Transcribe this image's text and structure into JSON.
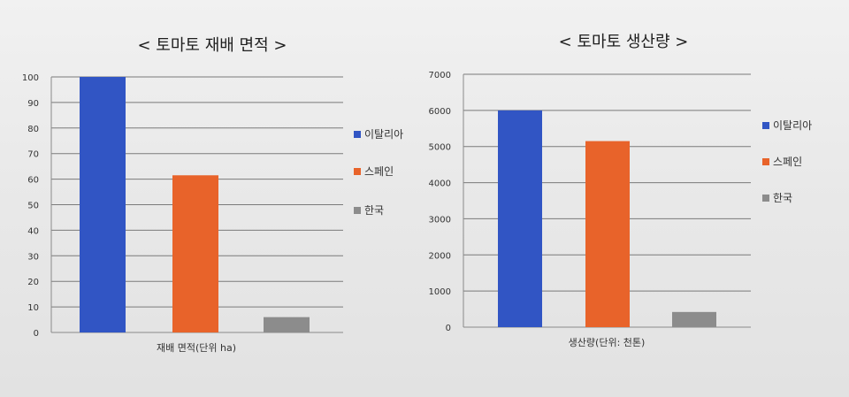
{
  "chart_data": [
    {
      "type": "bar",
      "title": "< 토마토 재배 면적 >",
      "xlabel": "재배 면적(단위 ha)",
      "ylabel": "",
      "ylim": [
        0,
        100
      ],
      "yticks": [
        0,
        10,
        20,
        30,
        40,
        50,
        60,
        70,
        80,
        90,
        100
      ],
      "grid": true,
      "legend_position": "right",
      "series": [
        {
          "name": "이탈리아",
          "values": [
            100
          ],
          "color": "#3155c4"
        },
        {
          "name": "스페인",
          "values": [
            61.5
          ],
          "color": "#e8632a"
        },
        {
          "name": "한국",
          "values": [
            6
          ],
          "color": "#8c8c8c"
        }
      ]
    },
    {
      "type": "bar",
      "title": "< 토마토 생산량 >",
      "xlabel": "생산량(단위: 천톤)",
      "ylabel": "",
      "ylim": [
        0,
        7000
      ],
      "yticks": [
        0,
        1000,
        2000,
        3000,
        4000,
        5000,
        6000,
        7000
      ],
      "grid": true,
      "legend_position": "right",
      "series": [
        {
          "name": "이탈리아",
          "values": [
            6000
          ],
          "color": "#3155c4"
        },
        {
          "name": "스페인",
          "values": [
            5150
          ],
          "color": "#e8632a"
        },
        {
          "name": "한국",
          "values": [
            420
          ],
          "color": "#8c8c8c"
        }
      ]
    }
  ]
}
